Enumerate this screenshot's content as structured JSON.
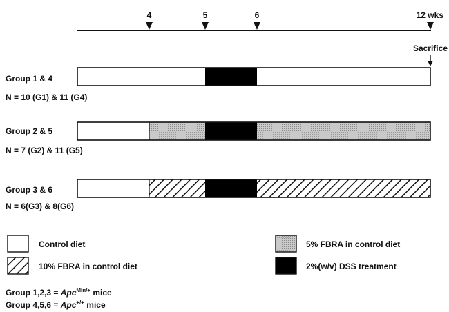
{
  "timeline": {
    "ticks": [
      {
        "label": "4"
      },
      {
        "label": "5"
      },
      {
        "label": "6"
      },
      {
        "label": "12 wks"
      }
    ],
    "sacrifice_label": "Sacrifice"
  },
  "groups": [
    {
      "name": "Group 1 & 4",
      "n": "N = 10 (G1) & 11 (G4)",
      "segments": [
        {
          "from": 0,
          "to": 5,
          "fill": "control"
        },
        {
          "from": 5,
          "to": 6,
          "fill": "dss"
        },
        {
          "from": 6,
          "to": 12,
          "fill": "control"
        }
      ]
    },
    {
      "name": "Group 2 & 5",
      "n": "N = 7 (G2) & 11 (G5)",
      "segments": [
        {
          "from": 0,
          "to": 4,
          "fill": "control"
        },
        {
          "from": 4,
          "to": 5,
          "fill": "fbra5"
        },
        {
          "from": 5,
          "to": 6,
          "fill": "dss"
        },
        {
          "from": 6,
          "to": 12,
          "fill": "fbra5"
        }
      ]
    },
    {
      "name": "Group 3 & 6",
      "n": "N = 6(G3) & 8(G6)",
      "segments": [
        {
          "from": 0,
          "to": 4,
          "fill": "control"
        },
        {
          "from": 4,
          "to": 5,
          "fill": "fbra10"
        },
        {
          "from": 5,
          "to": 6,
          "fill": "dss"
        },
        {
          "from": 6,
          "to": 12,
          "fill": "fbra10"
        }
      ]
    }
  ],
  "legend": {
    "control": "Control diet",
    "fbra5": "5% FBRA in control diet",
    "fbra10": "10% FBRA in control diet",
    "dss": "2%(w/v) DSS treatment"
  },
  "footnotes": {
    "line1_prefix": "Group 1,2,3 = ",
    "line1_gene": "Apc",
    "line1_sup": "Min/+",
    "line1_suffix": " mice",
    "line2_prefix": "Group 4,5,6 = ",
    "line2_gene": "Apc",
    "line2_sup": "+/+",
    "line2_suffix": " mice"
  },
  "colors": {
    "control": "#ffffff",
    "fbra5": "#c4c4c4",
    "dss": "#000000",
    "stroke": "#111111"
  }
}
